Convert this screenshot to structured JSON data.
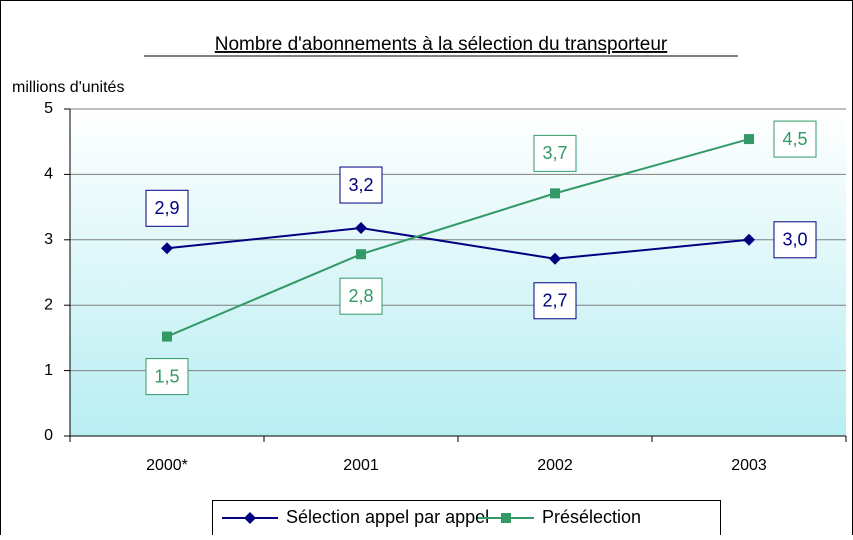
{
  "chart_data": {
    "type": "line",
    "title": "Nombre d'abonnements à la sélection du transporteur",
    "ylabel": "millions d'unités",
    "categories": [
      "2000*",
      "2001",
      "2002",
      "2003"
    ],
    "series": [
      {
        "name": "Sélection appel par appel",
        "color": "#000080",
        "marker": "diamond",
        "values": [
          2.87,
          3.18,
          2.71,
          3.0
        ],
        "value_labels": [
          "2,9",
          "3,2",
          "2,7",
          "3,0"
        ]
      },
      {
        "name": "Présélection",
        "color": "#339966",
        "marker": "square",
        "values": [
          1.52,
          2.78,
          3.71,
          4.54
        ],
        "value_labels": [
          "1,5",
          "2,8",
          "3,7",
          "4,5"
        ]
      }
    ],
    "ylim": [
      0,
      5
    ],
    "yticks": [
      0,
      1,
      2,
      3,
      4,
      5
    ],
    "grid": true
  }
}
